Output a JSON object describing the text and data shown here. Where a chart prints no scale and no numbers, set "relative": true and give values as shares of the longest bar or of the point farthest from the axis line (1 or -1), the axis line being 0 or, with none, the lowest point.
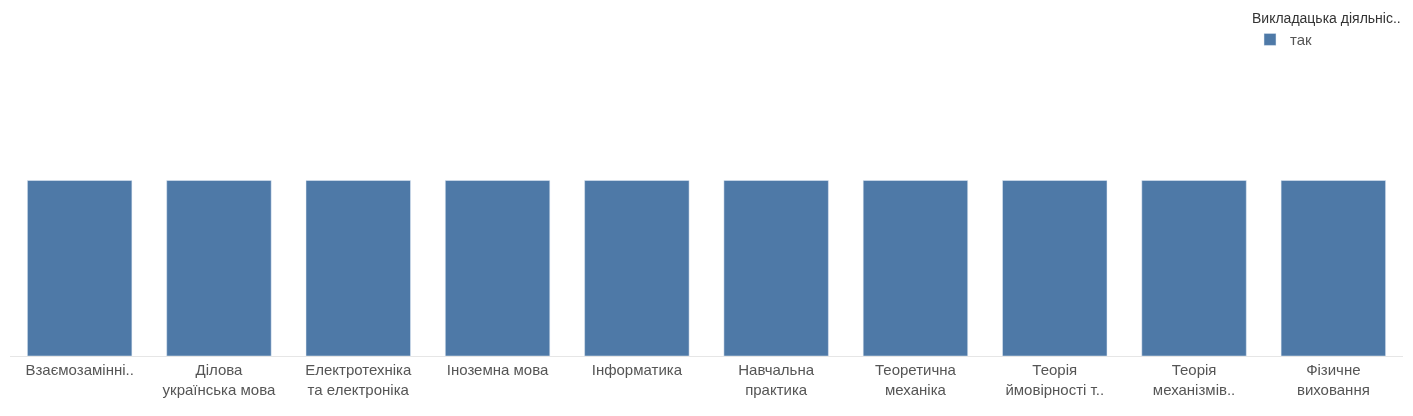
{
  "chart_data": {
    "type": "bar",
    "relative": true,
    "legend": "top right",
    "legend_title": "Викладацька діяльніс..",
    "categories": [
      "Взаємозамінні..",
      "Ділова українська мова",
      "Електротехніка та електроніка",
      "Іноземна мова",
      "Інформатика",
      "Навчальна практика",
      "Теоретична механіка",
      "Теорія ймовірності т..",
      "Теорія механізмів..",
      "Фізичне виховання"
    ],
    "series": [
      {
        "name": "так",
        "color": "#4e79a7",
        "values": [
          1,
          1,
          1,
          1,
          1,
          1,
          1,
          1,
          1,
          1
        ]
      }
    ]
  }
}
